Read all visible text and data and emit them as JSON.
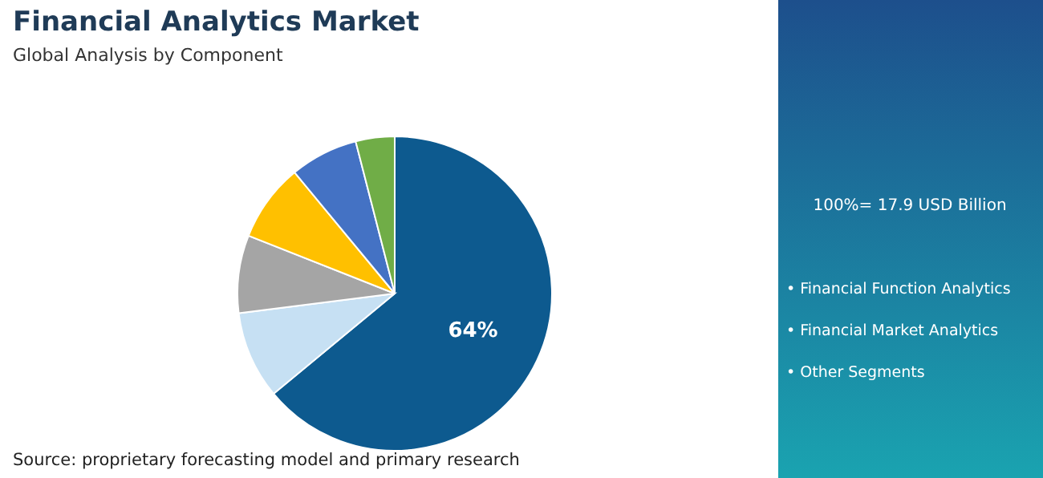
{
  "chart_data": {
    "type": "pie",
    "title": "Financial Analytics Market",
    "subtitle": "Global Analysis by Component",
    "categories": [
      null,
      null,
      null,
      null,
      null,
      null
    ],
    "values": [
      64,
      9,
      8,
      8,
      7,
      4
    ],
    "colors": [
      "#0d5a8f",
      "#c6e0f3",
      "#a5a5a5",
      "#ffc000",
      "#4472c4",
      "#70ad47"
    ],
    "value_labels": [
      "64%",
      null,
      null,
      null,
      null,
      null
    ],
    "annotations": [
      "100%= 17.9 USD Billion",
      "• Financial Function Analytics",
      "• Financial Market Analytics",
      "• Other Segments",
      "Source: proprietary forecasting model and primary research"
    ]
  }
}
